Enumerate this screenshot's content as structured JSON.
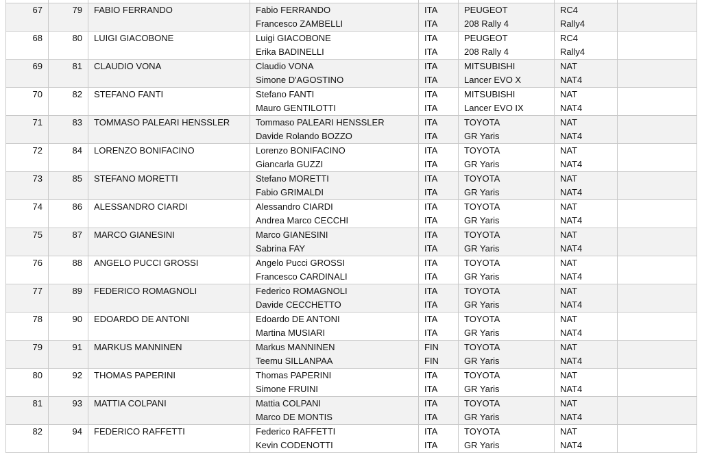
{
  "rows": [
    {
      "pos": "67",
      "num": "79",
      "entrant": "FABIO FERRANDO",
      "driver": "Fabio FERRANDO",
      "codriver": "Francesco ZAMBELLI",
      "nat1": "ITA",
      "nat2": "ITA",
      "make": "PEUGEOT",
      "model": "208 Rally 4",
      "class1": "RC4",
      "class2": "Rally4"
    },
    {
      "pos": "68",
      "num": "80",
      "entrant": "LUIGI GIACOBONE",
      "driver": "Luigi GIACOBONE",
      "codriver": "Erika BADINELLI",
      "nat1": "ITA",
      "nat2": "ITA",
      "make": "PEUGEOT",
      "model": "208 Rally 4",
      "class1": "RC4",
      "class2": "Rally4"
    },
    {
      "pos": "69",
      "num": "81",
      "entrant": "CLAUDIO VONA",
      "driver": "Claudio VONA",
      "codriver": "Simone D'AGOSTINO",
      "nat1": "ITA",
      "nat2": "ITA",
      "make": "MITSUBISHI",
      "model": "Lancer EVO X",
      "class1": "NAT",
      "class2": "NAT4"
    },
    {
      "pos": "70",
      "num": "82",
      "entrant": "STEFANO FANTI",
      "driver": "Stefano FANTI",
      "codriver": "Mauro GENTILOTTI",
      "nat1": "ITA",
      "nat2": "ITA",
      "make": "MITSUBISHI",
      "model": "Lancer EVO IX",
      "class1": "NAT",
      "class2": "NAT4"
    },
    {
      "pos": "71",
      "num": "83",
      "entrant": "TOMMASO PALEARI HENSSLER",
      "driver": "Tommaso PALEARI HENSSLER",
      "codriver": "Davide Rolando BOZZO",
      "nat1": "ITA",
      "nat2": "ITA",
      "make": "TOYOTA",
      "model": "GR Yaris",
      "class1": "NAT",
      "class2": "NAT4"
    },
    {
      "pos": "72",
      "num": "84",
      "entrant": "LORENZO BONIFACINO",
      "driver": "Lorenzo BONIFACINO",
      "codriver": "Giancarla GUZZI",
      "nat1": "ITA",
      "nat2": "ITA",
      "make": "TOYOTA",
      "model": "GR Yaris",
      "class1": "NAT",
      "class2": "NAT4"
    },
    {
      "pos": "73",
      "num": "85",
      "entrant": "STEFANO MORETTI",
      "driver": "Stefano MORETTI",
      "codriver": "Fabio GRIMALDI",
      "nat1": "ITA",
      "nat2": "ITA",
      "make": "TOYOTA",
      "model": "GR Yaris",
      "class1": "NAT",
      "class2": "NAT4"
    },
    {
      "pos": "74",
      "num": "86",
      "entrant": "ALESSANDRO CIARDI",
      "driver": "Alessandro CIARDI",
      "codriver": "Andrea Marco CECCHI",
      "nat1": "ITA",
      "nat2": "ITA",
      "make": "TOYOTA",
      "model": "GR Yaris",
      "class1": "NAT",
      "class2": "NAT4"
    },
    {
      "pos": "75",
      "num": "87",
      "entrant": "MARCO GIANESINI",
      "driver": "Marco GIANESINI",
      "codriver": "Sabrina FAY",
      "nat1": "ITA",
      "nat2": "ITA",
      "make": "TOYOTA",
      "model": "GR Yaris",
      "class1": "NAT",
      "class2": "NAT4"
    },
    {
      "pos": "76",
      "num": "88",
      "entrant": "ANGELO PUCCI GROSSI",
      "driver": "Angelo Pucci GROSSI",
      "codriver": "Francesco CARDINALI",
      "nat1": "ITA",
      "nat2": "ITA",
      "make": "TOYOTA",
      "model": "GR Yaris",
      "class1": "NAT",
      "class2": "NAT4"
    },
    {
      "pos": "77",
      "num": "89",
      "entrant": "FEDERICO ROMAGNOLI",
      "driver": "Federico ROMAGNOLI",
      "codriver": "Davide CECCHETTO",
      "nat1": "ITA",
      "nat2": "ITA",
      "make": "TOYOTA",
      "model": "GR Yaris",
      "class1": "NAT",
      "class2": "NAT4"
    },
    {
      "pos": "78",
      "num": "90",
      "entrant": "EDOARDO DE ANTONI",
      "driver": "Edoardo DE ANTONI",
      "codriver": "Martina MUSIARI",
      "nat1": "ITA",
      "nat2": "ITA",
      "make": "TOYOTA",
      "model": "GR Yaris",
      "class1": "NAT",
      "class2": "NAT4"
    },
    {
      "pos": "79",
      "num": "91",
      "entrant": "MARKUS MANNINEN",
      "driver": "Markus MANNINEN",
      "codriver": "Teemu SILLANPAA",
      "nat1": "FIN",
      "nat2": "FIN",
      "make": "TOYOTA",
      "model": "GR Yaris",
      "class1": "NAT",
      "class2": "NAT4"
    },
    {
      "pos": "80",
      "num": "92",
      "entrant": "THOMAS PAPERINI",
      "driver": "Thomas PAPERINI",
      "codriver": "Simone FRUINI",
      "nat1": "ITA",
      "nat2": "ITA",
      "make": "TOYOTA",
      "model": "GR Yaris",
      "class1": "NAT",
      "class2": "NAT4"
    },
    {
      "pos": "81",
      "num": "93",
      "entrant": "MATTIA COLPANI",
      "driver": "Mattia COLPANI",
      "codriver": "Marco DE MONTIS",
      "nat1": "ITA",
      "nat2": "ITA",
      "make": "TOYOTA",
      "model": "GR Yaris",
      "class1": "NAT",
      "class2": "NAT4"
    },
    {
      "pos": "82",
      "num": "94",
      "entrant": "FEDERICO RAFFETTI",
      "driver": "Federico RAFFETTI",
      "codriver": "Kevin CODENOTTI",
      "nat1": "ITA",
      "nat2": "ITA",
      "make": "TOYOTA",
      "model": "GR Yaris",
      "class1": "NAT",
      "class2": "NAT4"
    }
  ],
  "colors": {
    "row_shade": "#f2f2f2",
    "border": "#c8c8c8"
  }
}
